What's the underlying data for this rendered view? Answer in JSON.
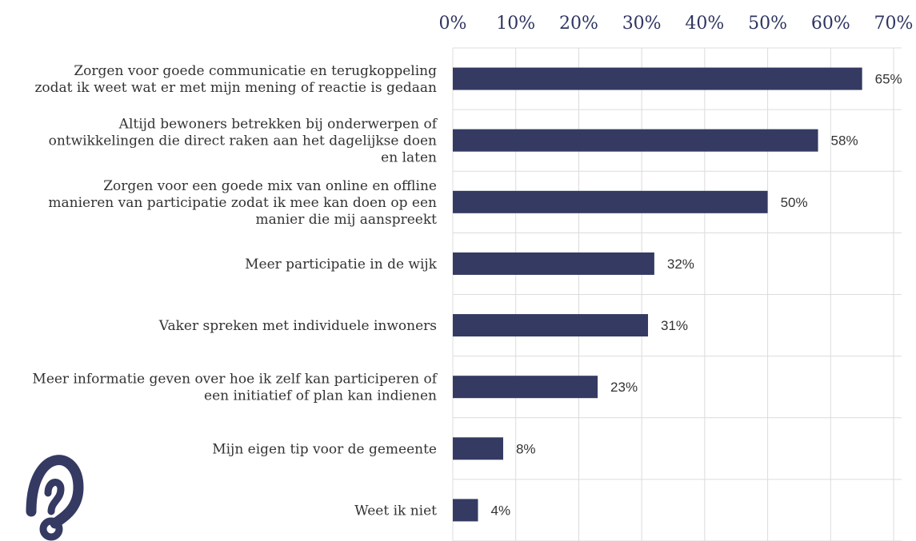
{
  "chart_data": {
    "type": "bar",
    "orientation": "horizontal",
    "title": "",
    "xlabel": "",
    "ylabel": "",
    "xlim": [
      0,
      70
    ],
    "x_ticks": [
      "0%",
      "10%",
      "20%",
      "30%",
      "40%",
      "50%",
      "60%",
      "70%"
    ],
    "tick_values": [
      0,
      10,
      20,
      30,
      40,
      50,
      60,
      70
    ],
    "grid": true,
    "bar_color": "#343a62",
    "categories": [
      [
        "Zorgen voor goede communicatie en terugkoppeling",
        "zodat ik weet wat er met mijn mening of reactie is gedaan"
      ],
      [
        "Altijd bewoners betrekken bij onderwerpen of",
        "ontwikkelingen die direct raken aan het dagelijkse doen",
        "en laten"
      ],
      [
        "Zorgen voor een goede mix van online en offline",
        "manieren van participatie zodat ik mee kan doen op een",
        "manier die mij aanspreekt"
      ],
      [
        "Meer participatie in de wijk"
      ],
      [
        "Vaker spreken met individuele inwoners"
      ],
      [
        "Meer informatie geven over hoe ik zelf kan participeren of",
        "een initiatief of plan kan indienen"
      ],
      [
        "Mijn eigen tip voor de gemeente"
      ],
      [
        "Weet ik niet"
      ]
    ],
    "values": [
      65,
      58,
      50,
      32,
      31,
      23,
      8,
      4
    ],
    "value_labels": [
      "65%",
      "58%",
      "50%",
      "32%",
      "31%",
      "23%",
      "8%",
      "4%"
    ]
  },
  "logo": {
    "icon": "question-mark-logo-icon",
    "color": "#343a62"
  }
}
